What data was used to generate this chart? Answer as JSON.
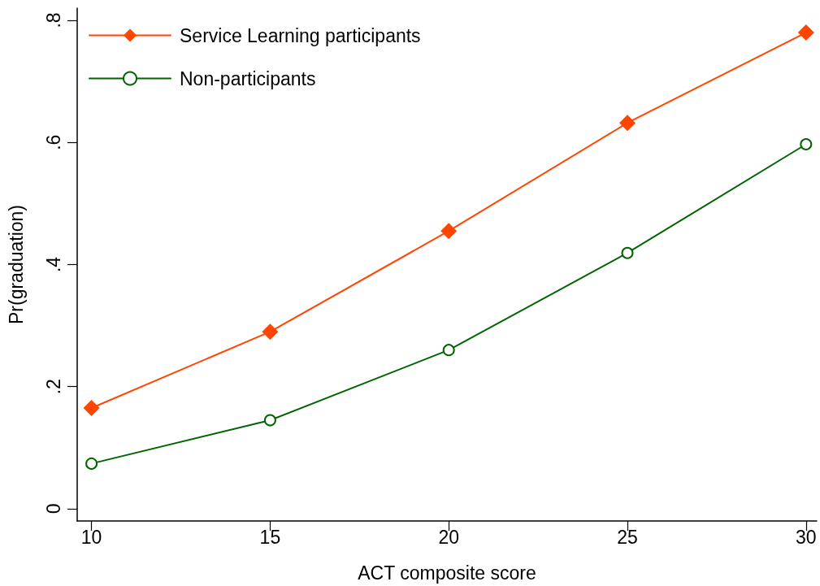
{
  "chart_data": {
    "type": "line",
    "xlabel": "ACT composite score",
    "ylabel": "Pr(graduation)",
    "x": [
      10,
      15,
      20,
      25,
      30
    ],
    "series": [
      {
        "name": "Service Learning participants",
        "color": "#ff4500",
        "marker": "diamond",
        "values": [
          0.165,
          0.29,
          0.455,
          0.632,
          0.78
        ]
      },
      {
        "name": "Non-participants",
        "color": "#006400",
        "marker": "circle",
        "values": [
          0.074,
          0.145,
          0.26,
          0.419,
          0.597
        ]
      }
    ],
    "xlim": [
      9.6,
      30.3
    ],
    "xticks": [
      10,
      15,
      20,
      25,
      30
    ],
    "ylim": [
      -0.02,
      0.82
    ],
    "yticks": [
      0,
      {
        "value": 0.2,
        "label": ".2"
      },
      {
        "value": 0.4,
        "label": ".4"
      },
      {
        "value": 0.6,
        "label": ".6"
      },
      {
        "value": 0.8,
        "label": ".8"
      }
    ],
    "legend": "top left",
    "line_style": "solid",
    "grid": false
  }
}
